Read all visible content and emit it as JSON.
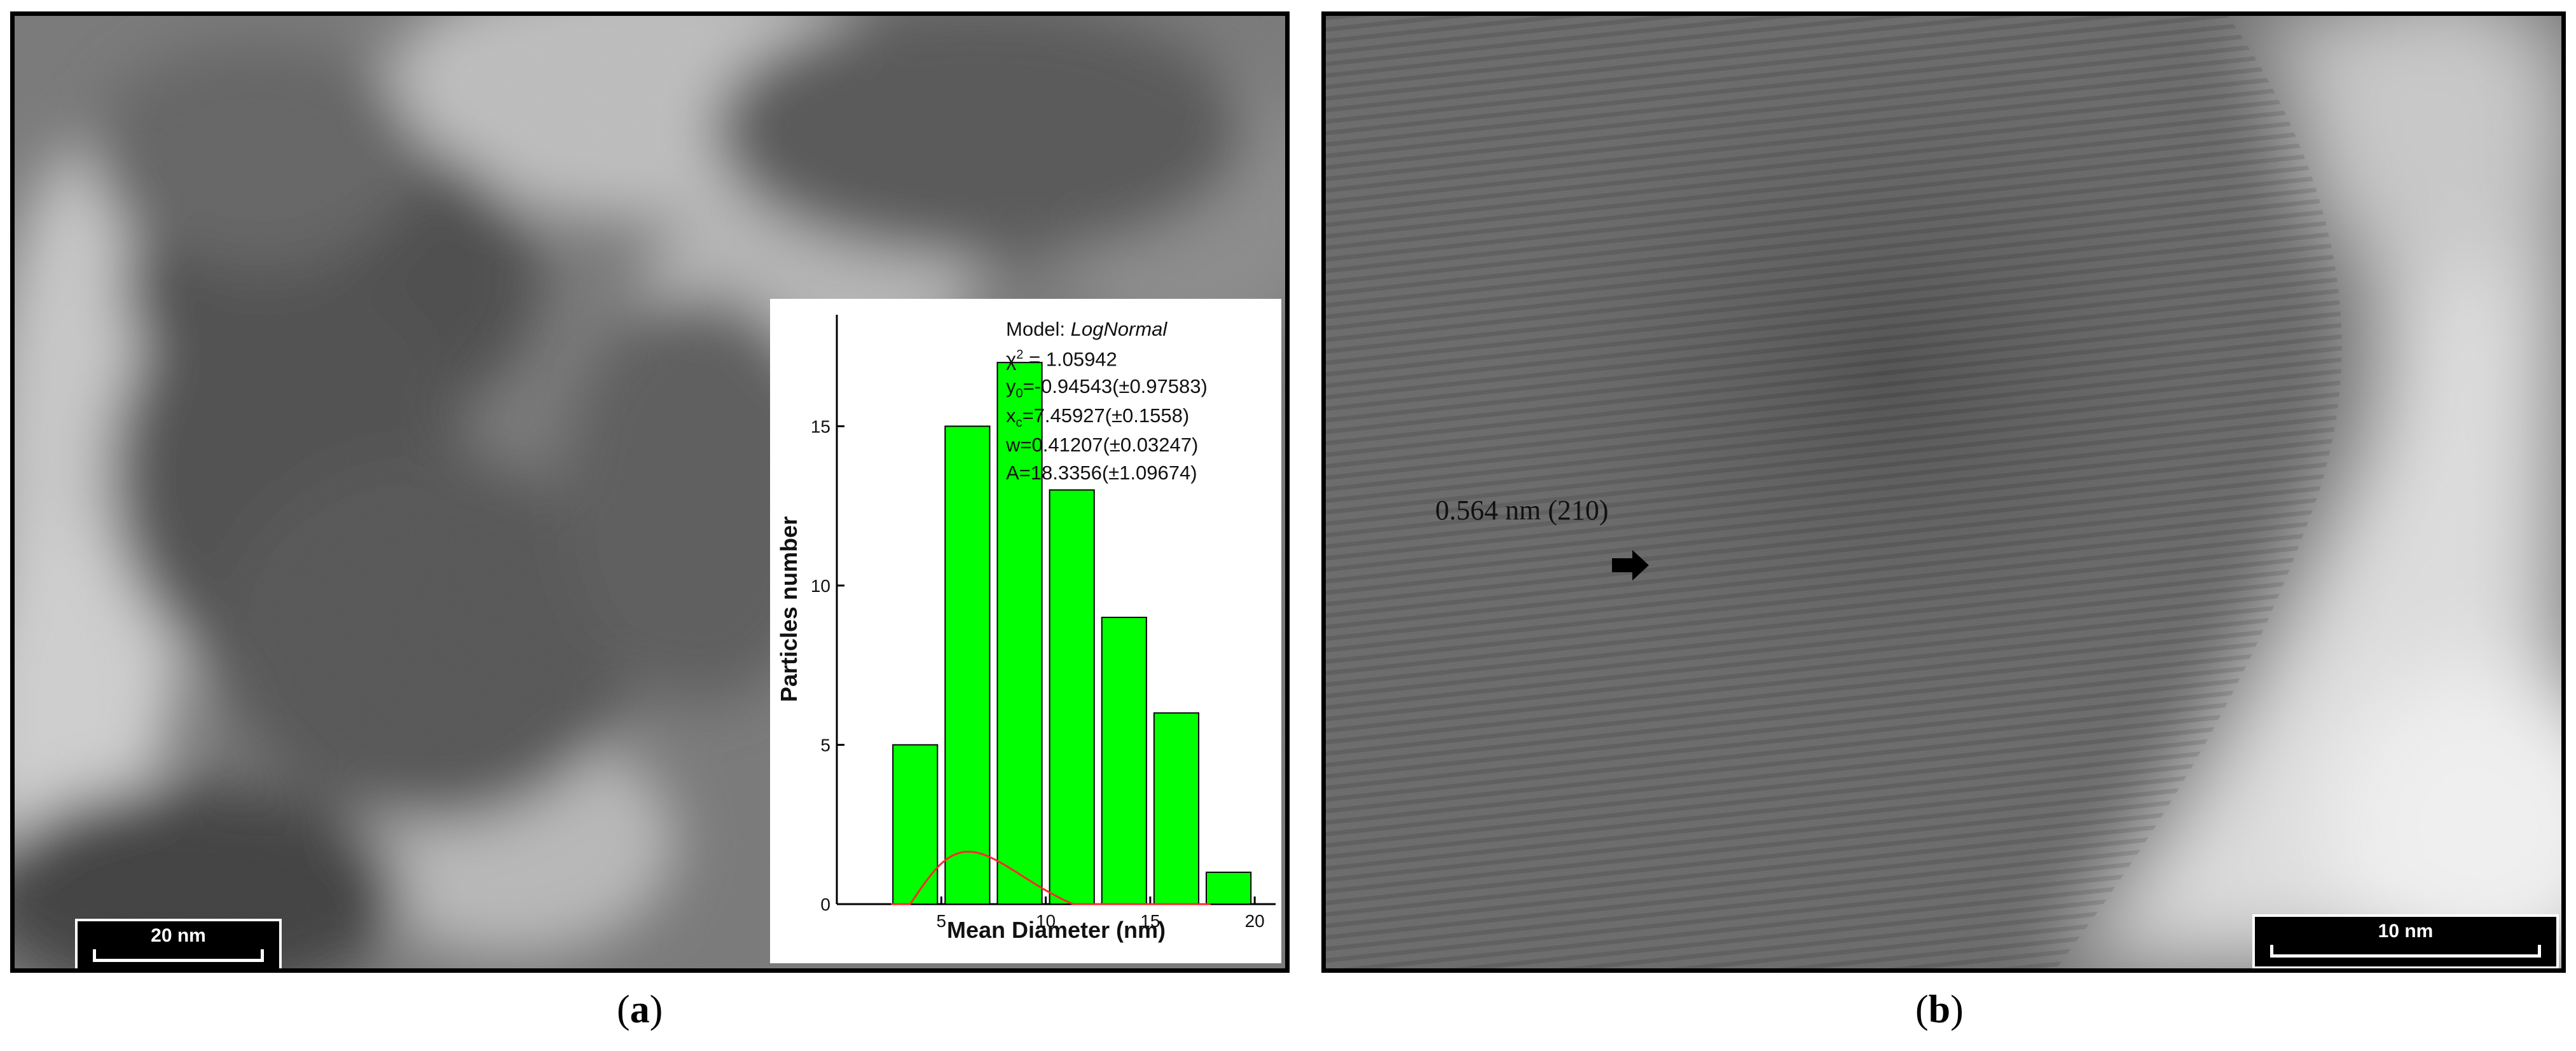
{
  "panels": {
    "a": {
      "label_open": "(",
      "label_letter": "a",
      "label_close": ")",
      "scalebar": "20 nm"
    },
    "b": {
      "label_open": "(",
      "label_letter": "b",
      "label_close": ")",
      "scalebar": "10 nm",
      "lattice_annotation": "0.564 nm (210)"
    }
  },
  "inset": {
    "fit": {
      "model_prefix": "Model: ",
      "model_name": "LogNormal",
      "chi_sym": "χ",
      "chi_sup": "2",
      "chi_val": " = 1.05942",
      "y0_sym": "y",
      "y0_sub": "0",
      "y0_val": "=-0.94543(±0.97583)",
      "xc_sym": "x",
      "xc_sub": "c",
      "xc_val": "=7.45927(±0.1558)",
      "w_line": "w=0.41207(±0.03247)",
      "A_line": "A=18.3356(±1.09674)"
    },
    "colors": {
      "bar": "#00ff00",
      "fit_curve": "#ff2a2a"
    }
  },
  "chart_data": {
    "type": "bar",
    "xlabel": "Mean Diameter (nm)",
    "ylabel": "Particles number",
    "xlim": [
      0,
      21
    ],
    "ylim": [
      0,
      18.5
    ],
    "xticks": [
      5,
      10,
      15,
      20
    ],
    "yticks": [
      0,
      5,
      10,
      15
    ],
    "bin_width": 2.5,
    "series": [
      {
        "x": [
          3.75,
          6.25,
          8.75,
          11.25,
          13.75,
          16.25
        ],
        "values": [
          5,
          15,
          17,
          13,
          9,
          6
        ]
      },
      {
        "x": [
          18.75
        ],
        "values": [
          1
        ]
      }
    ],
    "fit": {
      "y0": -0.94543,
      "xc": 7.45927,
      "w": 0.41207,
      "A": 18.3356
    }
  }
}
